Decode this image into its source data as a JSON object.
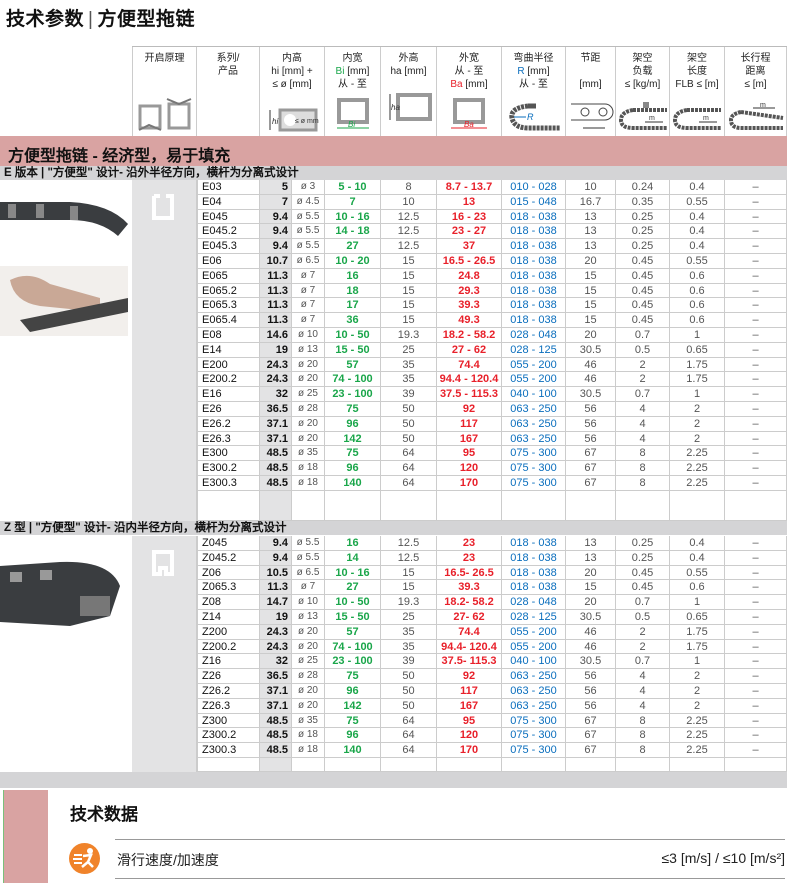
{
  "page_title": {
    "main": "技术参数",
    "separator": "|",
    "sub": "方便型拖链"
  },
  "header": {
    "principle": "开启原理",
    "series": [
      "系列/",
      "产品"
    ],
    "hi": [
      "内高",
      "hi [mm] +",
      "≤ ø [mm]"
    ],
    "bi": [
      "内宽",
      "Bi",
      " [mm]",
      "从 - 至"
    ],
    "ha": [
      "外高",
      "ha [mm]"
    ],
    "ba": [
      "外宽",
      "从 - 至",
      "Ba",
      " [mm]"
    ],
    "r": [
      "弯曲半径",
      "R",
      " [mm]",
      "从 - 至"
    ],
    "pitch": [
      "节距",
      "[mm]"
    ],
    "load": [
      "架空",
      "负载",
      "≤ [kg/m]"
    ],
    "length": [
      "架空",
      "长度",
      "FLB ≤ [m]"
    ],
    "travel": [
      "长行程",
      "距离",
      "≤ [m]"
    ],
    "icon_labels": {
      "hi": "hi",
      "o": "≤ ø mm",
      "bi": "Bi",
      "ha": "ha",
      "ba": "Ba",
      "r": "R",
      "m": "m"
    }
  },
  "band_title": "方便型拖链 - 经济型，易于填充",
  "colors": {
    "green": "#1aa64a",
    "red": "#e8202a",
    "blue": "#0a6ebd",
    "band": "#d9a3a2",
    "subband": "#d4d4d6",
    "orange": "#f0832a"
  },
  "sections": [
    {
      "heading": "E 版本 | \"方便型\" 设计- 沿外半径方向，横杆为分离式设计",
      "rows": [
        [
          "E03",
          "5",
          "ø 3",
          "5 - 10",
          "8",
          "8.7 - 13.7",
          "010 - 028",
          "10",
          "0.24",
          "0.4",
          "–"
        ],
        [
          "E04",
          "7",
          "ø 4.5",
          "7",
          "10",
          "13",
          "015 - 048",
          "16.7",
          "0.35",
          "0.55",
          "–"
        ],
        [
          "E045",
          "9.4",
          "ø 5.5",
          "10 - 16",
          "12.5",
          "16 - 23",
          "018 - 038",
          "13",
          "0.25",
          "0.4",
          "–"
        ],
        [
          "E045.2",
          "9.4",
          "ø 5.5",
          "14 - 18",
          "12.5",
          "23 - 27",
          "018 - 038",
          "13",
          "0.25",
          "0.4",
          "–"
        ],
        [
          "E045.3",
          "9.4",
          "ø 5.5",
          "27",
          "12.5",
          "37",
          "018 - 038",
          "13",
          "0.25",
          "0.4",
          "–"
        ],
        [
          "E06",
          "10.7",
          "ø 6.5",
          "10 - 20",
          "15",
          "16.5 - 26.5",
          "018 - 038",
          "20",
          "0.45",
          "0.55",
          "–"
        ],
        [
          "E065",
          "11.3",
          "ø 7",
          "16",
          "15",
          "24.8",
          "018 - 038",
          "15",
          "0.45",
          "0.6",
          "–"
        ],
        [
          "E065.2",
          "11.3",
          "ø 7",
          "18",
          "15",
          "29.3",
          "018 - 038",
          "15",
          "0.45",
          "0.6",
          "–"
        ],
        [
          "E065.3",
          "11.3",
          "ø 7",
          "17",
          "15",
          "39.3",
          "018 - 038",
          "15",
          "0.45",
          "0.6",
          "–"
        ],
        [
          "E065.4",
          "11.3",
          "ø 7",
          "36",
          "15",
          "49.3",
          "018 - 038",
          "15",
          "0.45",
          "0.6",
          "–"
        ],
        [
          "E08",
          "14.6",
          "ø 10",
          "10 - 50",
          "19.3",
          "18.2 - 58.2",
          "028 - 048",
          "20",
          "0.7",
          "1",
          "–"
        ],
        [
          "E14",
          "19",
          "ø 13",
          "15 - 50",
          "25",
          "27 - 62",
          "028 - 125",
          "30.5",
          "0.5",
          "0.65",
          "–"
        ],
        [
          "E200",
          "24.3",
          "ø 20",
          "57",
          "35",
          "74.4",
          "055 - 200",
          "46",
          "2",
          "1.75",
          "–"
        ],
        [
          "E200.2",
          "24.3",
          "ø 20",
          "74 - 100",
          "35",
          "94.4 - 120.4",
          "055 - 200",
          "46",
          "2",
          "1.75",
          "–"
        ],
        [
          "E16",
          "32",
          "ø 25",
          "23 - 100",
          "39",
          "37.5 - 115.3",
          "040 - 100",
          "30.5",
          "0.7",
          "1",
          "–"
        ],
        [
          "E26",
          "36.5",
          "ø 28",
          "75",
          "50",
          "92",
          "063 - 250",
          "56",
          "4",
          "2",
          "–"
        ],
        [
          "E26.2",
          "37.1",
          "ø 20",
          "96",
          "50",
          "117",
          "063 - 250",
          "56",
          "4",
          "2",
          "–"
        ],
        [
          "E26.3",
          "37.1",
          "ø 20",
          "142",
          "50",
          "167",
          "063 - 250",
          "56",
          "4",
          "2",
          "–"
        ],
        [
          "E300",
          "48.5",
          "ø 35",
          "75",
          "64",
          "95",
          "075 - 300",
          "67",
          "8",
          "2.25",
          "–"
        ],
        [
          "E300.2",
          "48.5",
          "ø 18",
          "96",
          "64",
          "120",
          "075 - 300",
          "67",
          "8",
          "2.25",
          "–"
        ],
        [
          "E300.3",
          "48.5",
          "ø 18",
          "140",
          "64",
          "170",
          "075 - 300",
          "67",
          "8",
          "2.25",
          "–"
        ]
      ]
    },
    {
      "heading": "Z 型 | \"方便型\" 设计- 沿内半径方向，横杆为分离式设计",
      "rows": [
        [
          "Z045",
          "9.4",
          "ø 5.5",
          "16",
          "12.5",
          "23",
          "018 - 038",
          "13",
          "0.25",
          "0.4",
          "–"
        ],
        [
          "Z045.2",
          "9.4",
          "ø 5.5",
          "14",
          "12.5",
          "23",
          "018 - 038",
          "13",
          "0.25",
          "0.4",
          "–"
        ],
        [
          "Z06",
          "10.5",
          "ø 6.5",
          "10 - 16",
          "15",
          "16.5- 26.5",
          "018 - 038",
          "20",
          "0.45",
          "0.55",
          "–"
        ],
        [
          "Z065.3",
          "11.3",
          "ø 7",
          "27",
          "15",
          "39.3",
          "018 - 038",
          "15",
          "0.45",
          "0.6",
          "–"
        ],
        [
          "Z08",
          "14.7",
          "ø 10",
          "10 - 50",
          "19.3",
          "18.2- 58.2",
          "028 - 048",
          "20",
          "0.7",
          "1",
          "–"
        ],
        [
          "Z14",
          "19",
          "ø 13",
          "15 - 50",
          "25",
          "27- 62",
          "028 - 125",
          "30.5",
          "0.5",
          "0.65",
          "–"
        ],
        [
          "Z200",
          "24.3",
          "ø 20",
          "57",
          "35",
          "74.4",
          "055 - 200",
          "46",
          "2",
          "1.75",
          "–"
        ],
        [
          "Z200.2",
          "24.3",
          "ø 20",
          "74 - 100",
          "35",
          "94.4- 120.4",
          "055 - 200",
          "46",
          "2",
          "1.75",
          "–"
        ],
        [
          "Z16",
          "32",
          "ø 25",
          "23 - 100",
          "39",
          "37.5- 115.3",
          "040 - 100",
          "30.5",
          "0.7",
          "1",
          "–"
        ],
        [
          "Z26",
          "36.5",
          "ø 28",
          "75",
          "50",
          "92",
          "063 - 250",
          "56",
          "4",
          "2",
          "–"
        ],
        [
          "Z26.2",
          "37.1",
          "ø 20",
          "96",
          "50",
          "117",
          "063 - 250",
          "56",
          "4",
          "2",
          "–"
        ],
        [
          "Z26.3",
          "37.1",
          "ø 20",
          "142",
          "50",
          "167",
          "063 - 250",
          "56",
          "4",
          "2",
          "–"
        ],
        [
          "Z300",
          "48.5",
          "ø 35",
          "75",
          "64",
          "95",
          "075 - 300",
          "67",
          "8",
          "2.25",
          "–"
        ],
        [
          "Z300.2",
          "48.5",
          "ø 18",
          "96",
          "64",
          "120",
          "075 - 300",
          "67",
          "8",
          "2.25",
          "–"
        ],
        [
          "Z300.3",
          "48.5",
          "ø 18",
          "140",
          "64",
          "170",
          "075 - 300",
          "67",
          "8",
          "2.25",
          "–"
        ]
      ]
    }
  ],
  "tech_data": {
    "title": "技术数据",
    "speed_label": "滑行速度/加速度",
    "speed_value": "≤3 [m/s] / ≤10 [m/s²]",
    "icon": "speed-runner-icon"
  }
}
